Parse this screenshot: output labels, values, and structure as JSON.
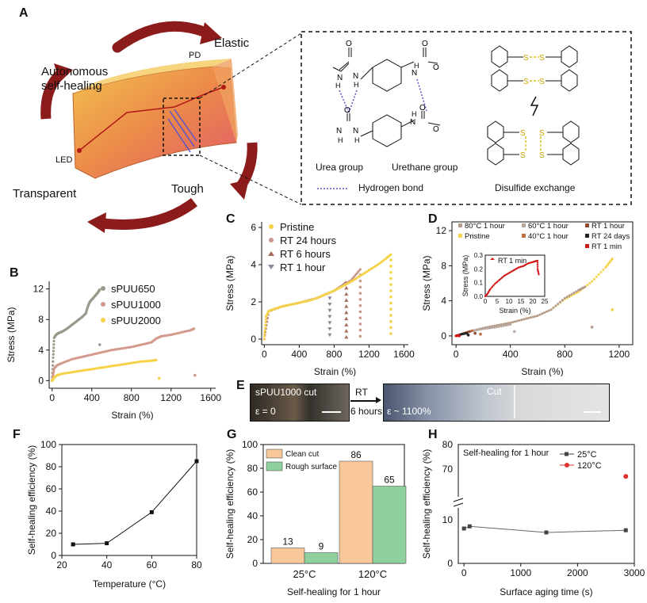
{
  "panelA": {
    "letter": "A",
    "cycle": {
      "elastic": "Elastic",
      "pd": "PD",
      "autonomous1": "Autonomous",
      "autonomous2": "self-healing",
      "led": "LED",
      "transparent": "Transparent",
      "tough": "Tough"
    },
    "chem": {
      "urea": "Urea group",
      "urethane": "Urethane group",
      "hbond": "Hydrogen bond",
      "disulfide": "Disulfide exchange",
      "atomH": "H",
      "atomN": "N",
      "atomO": "O",
      "atomS": "S"
    }
  },
  "panelB": {
    "letter": "B",
    "ylabel": "Stress (MPa)",
    "xlabel": "Strain (%)",
    "xticks": [
      "0",
      "400",
      "800",
      "1200",
      "1600"
    ],
    "yticks": [
      "0",
      "4",
      "8",
      "12"
    ],
    "legend": [
      "sPUU650",
      "sPUU1000",
      "sPUU2000"
    ]
  },
  "panelC": {
    "letter": "C",
    "ylabel": "Stress (MPa)",
    "xlabel": "Strain (%)",
    "xticks": [
      "0",
      "400",
      "800",
      "1200",
      "1600"
    ],
    "yticks": [
      "0",
      "2",
      "4",
      "6"
    ],
    "legend": [
      "Pristine",
      "RT 24 hours",
      "RT 6 hours",
      "RT 1 hour"
    ]
  },
  "panelD": {
    "letter": "D",
    "ylabel": "Stress (MPa)",
    "xlabel": "Strain (%)",
    "xticks": [
      "0",
      "400",
      "800",
      "1200"
    ],
    "yticks": [
      "0",
      "4",
      "8",
      "12"
    ],
    "legend": [
      "80°C 1 hour",
      "60°C 1 hour",
      "RT 1 hour",
      "Pristine",
      "40°C 1 hour",
      "RT 24 days",
      "RT 1 min"
    ],
    "inset": {
      "ylabel": "Stress (MPa)",
      "xlabel": "Strain (%)",
      "label": "RT 1 min",
      "xticks": [
        "0",
        "5",
        "10",
        "15",
        "20",
        "25"
      ],
      "yticks": [
        "0.0",
        "0.1",
        "0.2",
        "0.3"
      ]
    }
  },
  "panelE": {
    "letter": "E",
    "left_label": "sPUU1000 cut",
    "left_strain": "ε = 0",
    "arrow_top": "RT",
    "arrow_bottom": "6 hours",
    "cut_label": "Cut",
    "right_strain": "ε ~ 1100%"
  },
  "panelF": {
    "letter": "F",
    "ylabel": "Self-healing efficiency (%)",
    "xlabel": "Temperature (°C)",
    "xticks": [
      "20",
      "40",
      "60",
      "80"
    ],
    "yticks": [
      "0",
      "20",
      "40",
      "60",
      "80",
      "100"
    ]
  },
  "panelG": {
    "letter": "G",
    "ylabel": "Self-healing efficiency (%)",
    "xlabel": "Self-healing for 1 hour",
    "yticks": [
      "0",
      "20",
      "40",
      "60",
      "80",
      "100"
    ],
    "legend": [
      "Clean cut",
      "Rough surface"
    ]
  },
  "panelH": {
    "letter": "H",
    "ylabel": "Self-healing efficiency (%)",
    "xlabel": "Surface aging time (s)",
    "xticks": [
      "0",
      "1000",
      "2000",
      "3000"
    ],
    "yticks_low": [
      "0",
      "10"
    ],
    "yticks_high": [
      "70",
      "80"
    ],
    "title": "Self-healing for 1 hour",
    "legend": [
      "25°C",
      "120°C"
    ]
  },
  "chart_data": [
    {
      "panel": "B",
      "type": "scatter",
      "title": "",
      "xlabel": "Strain (%)",
      "ylabel": "Stress (MPa)",
      "xlim": [
        -30,
        1650
      ],
      "ylim": [
        -1,
        13
      ],
      "color_by_series": [
        "#9a9a8c",
        "#d39a8e",
        "#f5d24a"
      ],
      "series": [
        {
          "name": "sPUU650",
          "x": [
            0,
            10,
            20,
            40,
            60,
            100,
            150,
            200,
            250,
            300,
            340,
            360,
            380,
            400,
            420,
            440,
            460,
            470,
            480,
            480
          ],
          "y": [
            0,
            3,
            5.6,
            6.0,
            6.2,
            6.4,
            6.8,
            7.3,
            7.8,
            8.3,
            8.8,
            9.7,
            10.3,
            10.6,
            10.9,
            11.2,
            11.5,
            11.7,
            11.9,
            4.7
          ]
        },
        {
          "name": "sPUU1000",
          "x": [
            0,
            20,
            50,
            100,
            200,
            300,
            400,
            500,
            600,
            700,
            800,
            900,
            1000,
            1050,
            1100,
            1200,
            1300,
            1400,
            1430,
            1440
          ],
          "y": [
            0,
            1.6,
            2.0,
            2.3,
            2.8,
            3.1,
            3.4,
            3.7,
            4.0,
            4.2,
            4.4,
            4.7,
            5.0,
            5.5,
            5.8,
            6.0,
            6.3,
            6.6,
            6.8,
            0.7
          ]
        },
        {
          "name": "sPUU2000",
          "x": [
            0,
            20,
            50,
            100,
            200,
            300,
            400,
            500,
            600,
            700,
            800,
            900,
            1000,
            1050,
            1080
          ],
          "y": [
            0,
            0.4,
            0.7,
            0.9,
            1.1,
            1.3,
            1.5,
            1.7,
            1.9,
            2.1,
            2.3,
            2.5,
            2.6,
            2.7,
            0.3
          ]
        }
      ]
    },
    {
      "panel": "C",
      "type": "scatter",
      "title": "",
      "xlabel": "Strain (%)",
      "ylabel": "Stress (MPa)",
      "xlim": [
        -30,
        1650
      ],
      "ylim": [
        -0.3,
        6.3
      ],
      "color_by_series": [
        "#f5d24a",
        "#c8968c",
        "#a46a56",
        "#8a8a9a"
      ],
      "series": [
        {
          "name": "Pristine",
          "x": [
            0,
            20,
            50,
            100,
            200,
            300,
            400,
            500,
            600,
            700,
            800,
            900,
            1000,
            1100,
            1200,
            1300,
            1400,
            1450
          ],
          "y": [
            0,
            1.2,
            1.5,
            1.6,
            1.75,
            1.85,
            1.95,
            2.05,
            2.2,
            2.4,
            2.6,
            2.85,
            3.1,
            3.4,
            3.7,
            4.0,
            4.35,
            4.55
          ],
          "break": 1450
        },
        {
          "name": "RT 24 hours",
          "x": [
            0,
            50,
            200,
            400,
            600,
            800,
            1000,
            1100
          ],
          "y": [
            0,
            1.5,
            1.75,
            1.95,
            2.2,
            2.6,
            3.2,
            3.75
          ],
          "break": 1100
        },
        {
          "name": "RT 6 hours",
          "x": [
            0,
            50,
            200,
            400,
            600,
            800,
            900,
            940
          ],
          "y": [
            0,
            1.5,
            1.75,
            1.95,
            2.2,
            2.6,
            2.9,
            3.05
          ],
          "break": 940
        },
        {
          "name": "RT 1 hour",
          "x": [
            0,
            50,
            200,
            400,
            600,
            700,
            750
          ],
          "y": [
            0,
            1.5,
            1.75,
            1.95,
            2.2,
            2.4,
            2.5
          ],
          "break": 750
        }
      ]
    },
    {
      "panel": "D",
      "type": "scatter",
      "title": "",
      "xlabel": "Strain (%)",
      "ylabel": "Stress (MPa)",
      "xlim": [
        -30,
        1300
      ],
      "ylim": [
        -1,
        13
      ],
      "color_by_series": [
        "#b59a8e",
        "#b8a8a0",
        "#8c4a2e",
        "#f5d24a",
        "#c06a40",
        "#222222",
        "#d01818"
      ],
      "series": [
        {
          "name": "80°C 1 hour",
          "x": [
            0,
            100,
            200,
            300,
            400,
            500,
            600,
            700,
            800,
            900,
            950,
            1000
          ],
          "y": [
            0,
            0.5,
            0.9,
            1.2,
            1.5,
            1.9,
            2.3,
            3.0,
            4.3,
            5.2,
            5.6,
            1.0
          ]
        },
        {
          "name": "60°C 1 hour",
          "x": [
            0,
            100,
            200,
            300,
            400,
            430
          ],
          "y": [
            0,
            0.5,
            0.8,
            1.0,
            1.3,
            0.5
          ]
        },
        {
          "name": "RT 1 hour",
          "x": [
            0,
            60,
            100,
            140
          ],
          "y": [
            0,
            0.3,
            0.5,
            0.3
          ]
        },
        {
          "name": "Pristine",
          "x": [
            0,
            100,
            200,
            300,
            400,
            500,
            600,
            700,
            800,
            900,
            1000,
            1100,
            1150,
            1150
          ],
          "y": [
            0,
            0.5,
            0.9,
            1.2,
            1.5,
            1.9,
            2.3,
            3.0,
            4.2,
            5.0,
            6.2,
            7.8,
            8.8,
            3.0
          ]
        },
        {
          "name": "40°C 1 hour",
          "x": [
            0,
            60,
            120,
            180
          ],
          "y": [
            0,
            0.3,
            0.6,
            0.2
          ]
        },
        {
          "name": "RT 24 days",
          "x": [
            0,
            40,
            80,
            90
          ],
          "y": [
            0,
            0.2,
            0.3,
            0.1
          ]
        },
        {
          "name": "RT 1 min",
          "x": [
            0,
            5,
            10,
            15,
            20,
            22,
            23
          ],
          "y": [
            0,
            0.02,
            0.04,
            0.05,
            0.06,
            0.06,
            0.01
          ]
        }
      ]
    },
    {
      "panel": "D-inset",
      "type": "line",
      "title": "",
      "xlabel": "Strain (%)",
      "ylabel": "Stress (MPa)",
      "xlim": [
        0,
        25
      ],
      "ylim": [
        0,
        0.3
      ],
      "series": [
        {
          "name": "RT 1 min",
          "x": [
            0,
            1,
            2,
            4,
            6,
            8,
            10,
            12,
            14,
            16,
            18,
            20,
            21,
            22,
            22,
            22.5
          ],
          "y": [
            0,
            0.02,
            0.05,
            0.09,
            0.12,
            0.15,
            0.17,
            0.19,
            0.21,
            0.22,
            0.24,
            0.25,
            0.255,
            0.26,
            0.2,
            0.16
          ]
        }
      ]
    },
    {
      "panel": "F",
      "type": "line",
      "title": "",
      "xlabel": "Temperature (°C)",
      "ylabel": "Self-healing efficiency (%)",
      "xlim": [
        20,
        80
      ],
      "ylim": [
        0,
        100
      ],
      "series": [
        {
          "name": "efficiency",
          "x": [
            25,
            40,
            60,
            80
          ],
          "y": [
            10,
            11,
            39,
            85
          ]
        }
      ]
    },
    {
      "panel": "G",
      "type": "bar",
      "title": "",
      "xlabel": "Self-healing for 1 hour",
      "ylabel": "Self-healing efficiency (%)",
      "ylim": [
        0,
        100
      ],
      "categories": [
        "25°C",
        "120°C"
      ],
      "series": [
        {
          "name": "Clean cut",
          "values": [
            13,
            86
          ],
          "color": "#f8c79a"
        },
        {
          "name": "Rough surface",
          "values": [
            9,
            65
          ],
          "color": "#8fd19e"
        }
      ]
    },
    {
      "panel": "H",
      "type": "line",
      "title": "Self-healing for 1 hour",
      "xlabel": "Surface aging time (s)",
      "ylabel": "Self-healing efficiency (%)",
      "xlim": [
        -100,
        3000
      ],
      "ylim_low": [
        0,
        10
      ],
      "ylim_high": [
        60,
        80
      ],
      "series": [
        {
          "name": "25°C",
          "x": [
            0,
            100,
            1450,
            2850
          ],
          "y": [
            8,
            8.5,
            7.1,
            7.6
          ],
          "color": "#666666"
        },
        {
          "name": "120°C",
          "x": [
            2850
          ],
          "y": [
            67
          ],
          "color": "#e03030"
        }
      ]
    }
  ]
}
